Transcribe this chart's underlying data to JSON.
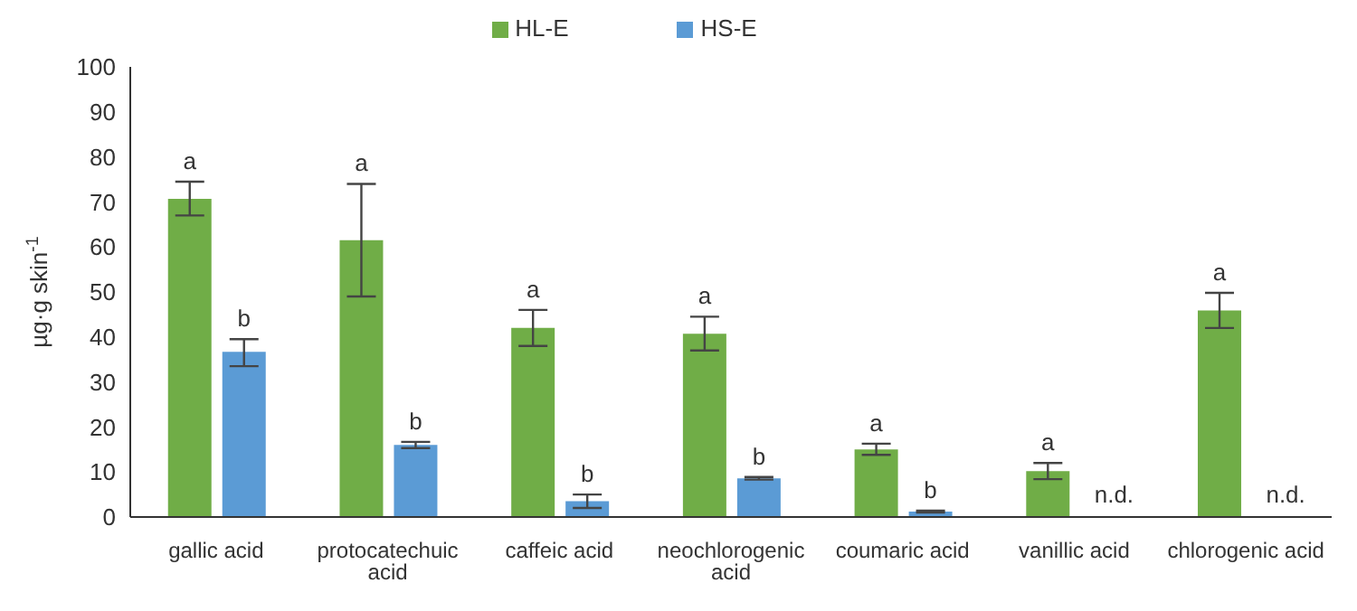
{
  "chart_data": {
    "type": "bar",
    "ylabel": "µg·g skin$^{-1}$",
    "categories": [
      "gallic acid",
      "protocatechuic acid",
      "caffeic acid",
      "neochlorogenic acid",
      "coumaric acid",
      "vanillic acid",
      "chlorogenic acid"
    ],
    "series": [
      {
        "name": "HL-E",
        "color": "#70ad47",
        "values": [
          70.7,
          61.5,
          42,
          40.7,
          15,
          10.2,
          45.9
        ],
        "errors": [
          [
            67,
            74.5
          ],
          [
            49,
            74
          ],
          [
            38,
            46
          ],
          [
            37,
            44.5
          ],
          [
            13.8,
            16.3
          ],
          [
            8.4,
            12
          ],
          [
            42,
            49.8
          ]
        ],
        "value_labels": [
          "a",
          "a",
          "a",
          "a",
          "a",
          "a",
          "a"
        ]
      },
      {
        "name": "HS-E",
        "color": "#5b9bd5",
        "values": [
          36.7,
          16,
          3.5,
          8.6,
          1.2,
          null,
          null
        ],
        "errors": [
          [
            33.5,
            39.5
          ],
          [
            15.3,
            16.7
          ],
          [
            2,
            5
          ],
          [
            8.3,
            8.9
          ],
          [
            1,
            1.4
          ],
          null,
          null
        ],
        "value_labels": [
          "b",
          "b",
          "b",
          "b",
          "b",
          "n.d.",
          "n.d."
        ]
      }
    ],
    "ylim": [
      0,
      100
    ],
    "yticks": [
      0,
      10,
      20,
      30,
      40,
      50,
      60,
      70,
      80,
      90,
      100
    ],
    "grid": false,
    "legend": "top"
  }
}
